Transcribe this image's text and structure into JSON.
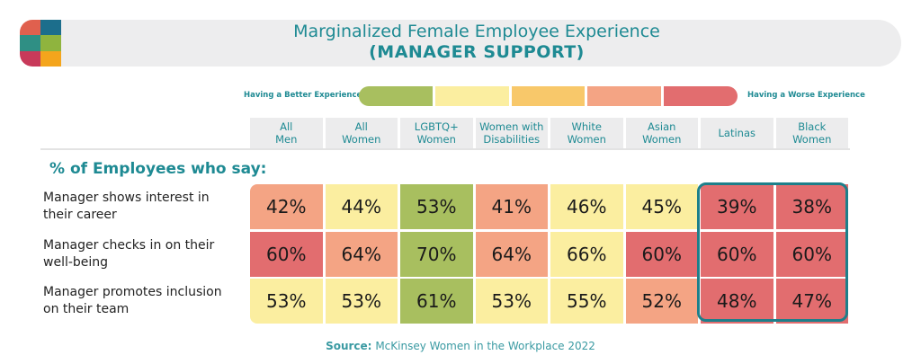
{
  "title": {
    "line1": "Marginalized Female Employee Experience",
    "line2": "(MANAGER SUPPORT)"
  },
  "legend": {
    "better": "Having a Better Experience",
    "worse": "Having a Worse Experience",
    "colors": [
      "#a8bf5f",
      "#fbeea0",
      "#f8c86a",
      "#f4a484",
      "#e26d6f"
    ]
  },
  "section_label": "% of Employees who say:",
  "source": {
    "prefix": "Source:",
    "text": "McKinsey Women in the Workplace 2022"
  },
  "colors": {
    "accent": "#1e8a93",
    "green": "#a8bf5f",
    "yellow": "#fbeea0",
    "salmon": "#f4a484",
    "red": "#e26d6f"
  },
  "chart_data": {
    "type": "heatmap",
    "title": "Marginalized Female Employee Experience (MANAGER SUPPORT)",
    "columns": [
      [
        "All",
        "Men"
      ],
      [
        "All",
        "Women"
      ],
      [
        "LGBTQ+",
        "Women"
      ],
      [
        "Women with",
        "Disabilities"
      ],
      [
        "White",
        "Women"
      ],
      [
        "Asian",
        "Women"
      ],
      [
        "Latinas"
      ],
      [
        "Black",
        "Women"
      ]
    ],
    "rows": [
      {
        "label": [
          "Manager shows interest in",
          "their career"
        ],
        "values": [
          "42%",
          "44%",
          "53%",
          "41%",
          "46%",
          "45%",
          "39%",
          "38%"
        ],
        "colors": [
          "salmon",
          "yellow",
          "green",
          "salmon",
          "yellow",
          "yellow",
          "red",
          "red"
        ]
      },
      {
        "label": [
          "Manager checks in on their",
          "well-being"
        ],
        "values": [
          "60%",
          "64%",
          "70%",
          "64%",
          "66%",
          "60%",
          "60%",
          "60%"
        ],
        "colors": [
          "red",
          "salmon",
          "green",
          "salmon",
          "yellow",
          "red",
          "red",
          "red"
        ]
      },
      {
        "label": [
          "Manager promotes inclusion",
          "on their team"
        ],
        "values": [
          "53%",
          "53%",
          "61%",
          "53%",
          "55%",
          "52%",
          "48%",
          "47%"
        ],
        "colors": [
          "yellow",
          "yellow",
          "green",
          "yellow",
          "yellow",
          "salmon",
          "red",
          "red"
        ]
      }
    ],
    "highlighted_columns": [
      "Latinas",
      "Black Women"
    ]
  }
}
